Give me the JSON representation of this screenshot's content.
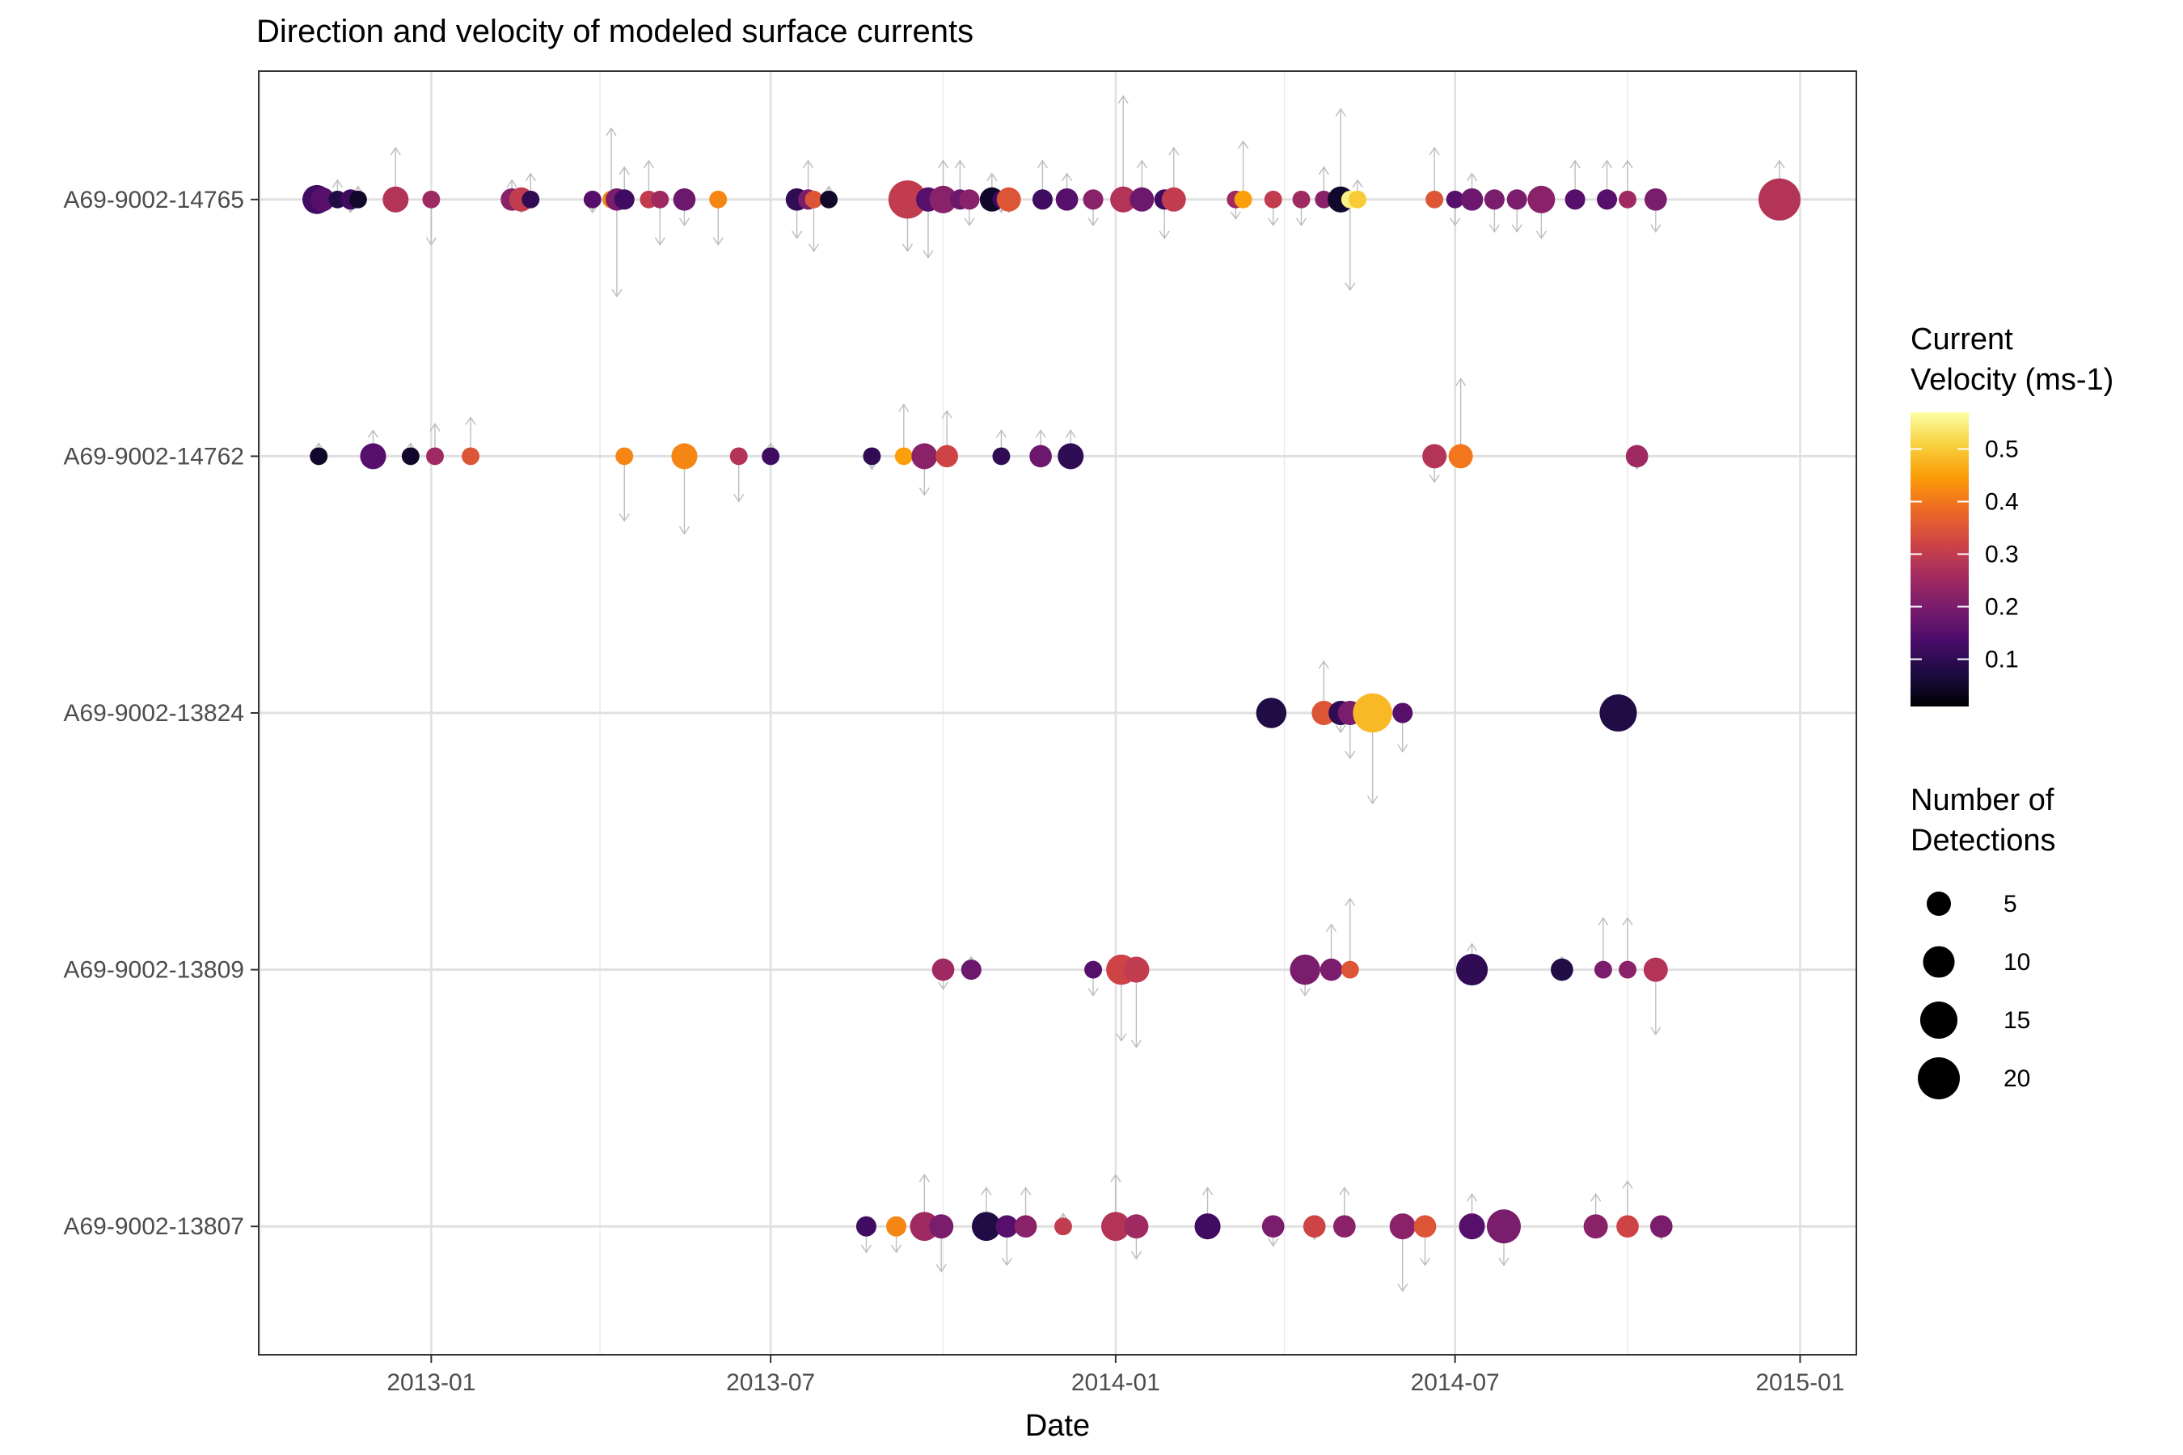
{
  "chart_data": {
    "type": "scatter",
    "title": "Direction and velocity of modeled surface currents",
    "xlabel": "Date",
    "ylabel": "",
    "x_ticks": [
      "2013-01",
      "2013-07",
      "2014-01",
      "2014-07",
      "2015-01"
    ],
    "categories": [
      "A69-9002-14765",
      "A69-9002-14762",
      "A69-9002-13824",
      "A69-9002-13809",
      "A69-9002-13807"
    ],
    "xlim": [
      "2012-10-01",
      "2015-01-31"
    ],
    "legend_color": {
      "title_line1": "Current",
      "title_line2": "Velocity (ms-1)",
      "ticks": [
        "0.5",
        "0.4",
        "0.3",
        "0.2",
        "0.1"
      ],
      "range": [
        0.01,
        0.57
      ]
    },
    "legend_size": {
      "title_line1": "Number of",
      "title_line2": "Detections",
      "values": [
        "5",
        "10",
        "15",
        "20"
      ]
    },
    "series": [
      {
        "tag": "A69-9002-14765",
        "points": [
          {
            "date": "2012-11-01",
            "velocity": 0.12,
            "detections": 8,
            "arrow": -0.1
          },
          {
            "date": "2012-11-04",
            "velocity": 0.15,
            "detections": 5,
            "arrow": 0.1
          },
          {
            "date": "2012-11-12",
            "velocity": 0.08,
            "detections": 2,
            "arrow": 0.15
          },
          {
            "date": "2012-11-19",
            "velocity": 0.12,
            "detections": 3,
            "arrow": -0.1
          },
          {
            "date": "2012-11-23",
            "velocity": 0.05,
            "detections": 2,
            "arrow": 0.1
          },
          {
            "date": "2012-12-13",
            "velocity": 0.28,
            "detections": 6,
            "arrow": 0.4
          },
          {
            "date": "2013-01-01",
            "velocity": 0.25,
            "detections": 2,
            "arrow": -0.35
          },
          {
            "date": "2013-02-13",
            "velocity": 0.22,
            "detections": 4,
            "arrow": 0.15
          },
          {
            "date": "2013-02-18",
            "velocity": 0.3,
            "detections": 5,
            "arrow": -0.1
          },
          {
            "date": "2013-02-23",
            "velocity": 0.1,
            "detections": 2,
            "arrow": 0.2
          },
          {
            "date": "2013-03-28",
            "velocity": 0.15,
            "detections": 2,
            "arrow": -0.1
          },
          {
            "date": "2013-04-07",
            "velocity": 0.42,
            "detections": 2,
            "arrow": 0.55
          },
          {
            "date": "2013-04-10",
            "velocity": 0.2,
            "detections": 4,
            "arrow": -0.75
          },
          {
            "date": "2013-04-14",
            "velocity": 0.12,
            "detections": 3,
            "arrow": 0.25
          },
          {
            "date": "2013-04-27",
            "velocity": 0.3,
            "detections": 2,
            "arrow": 0.3
          },
          {
            "date": "2013-05-03",
            "velocity": 0.25,
            "detections": 2,
            "arrow": -0.35
          },
          {
            "date": "2013-05-16",
            "velocity": 0.18,
            "detections": 4,
            "arrow": -0.2
          },
          {
            "date": "2013-06-03",
            "velocity": 0.42,
            "detections": 2,
            "arrow": -0.35
          },
          {
            "date": "2013-07-15",
            "velocity": 0.1,
            "detections": 4,
            "arrow": -0.3
          },
          {
            "date": "2013-07-21",
            "velocity": 0.2,
            "detections": 3,
            "arrow": 0.3
          },
          {
            "date": "2013-07-24",
            "velocity": 0.35,
            "detections": 2,
            "arrow": -0.4
          },
          {
            "date": "2013-08-01",
            "velocity": 0.05,
            "detections": 2,
            "arrow": 0.1
          },
          {
            "date": "2013-09-12",
            "velocity": 0.3,
            "detections": 16,
            "arrow": -0.4
          },
          {
            "date": "2013-09-23",
            "velocity": 0.15,
            "detections": 5,
            "arrow": -0.45
          },
          {
            "date": "2013-10-01",
            "velocity": 0.22,
            "detections": 7,
            "arrow": 0.3
          },
          {
            "date": "2013-10-10",
            "velocity": 0.18,
            "detections": 3,
            "arrow": 0.3
          },
          {
            "date": "2013-10-15",
            "velocity": 0.22,
            "detections": 3,
            "arrow": -0.2
          },
          {
            "date": "2013-10-27",
            "velocity": 0.05,
            "detections": 5,
            "arrow": 0.2
          },
          {
            "date": "2013-11-01",
            "velocity": 0.12,
            "detections": 2,
            "arrow": -0.1
          },
          {
            "date": "2013-11-05",
            "velocity": 0.35,
            "detections": 5,
            "arrow": -0.1
          },
          {
            "date": "2013-11-23",
            "velocity": 0.12,
            "detections": 3,
            "arrow": 0.3
          },
          {
            "date": "2013-12-06",
            "velocity": 0.15,
            "detections": 4,
            "arrow": 0.2
          },
          {
            "date": "2013-12-20",
            "velocity": 0.22,
            "detections": 3,
            "arrow": -0.2
          },
          {
            "date": "2014-01-05",
            "velocity": 0.28,
            "detections": 6,
            "arrow": 0.8
          },
          {
            "date": "2014-01-15",
            "velocity": 0.18,
            "detections": 5,
            "arrow": 0.3
          },
          {
            "date": "2014-01-27",
            "velocity": 0.12,
            "detections": 3,
            "arrow": -0.3
          },
          {
            "date": "2014-02-01",
            "velocity": 0.3,
            "detections": 5,
            "arrow": 0.4
          },
          {
            "date": "2014-03-06",
            "velocity": 0.25,
            "detections": 2,
            "arrow": -0.15
          },
          {
            "date": "2014-03-10",
            "velocity": 0.45,
            "detections": 2,
            "arrow": 0.45
          },
          {
            "date": "2014-03-26",
            "velocity": 0.3,
            "detections": 2,
            "arrow": -0.2
          },
          {
            "date": "2014-04-10",
            "velocity": 0.25,
            "detections": 2,
            "arrow": -0.2
          },
          {
            "date": "2014-04-22",
            "velocity": 0.22,
            "detections": 2,
            "arrow": 0.25
          },
          {
            "date": "2014-05-01",
            "velocity": 0.05,
            "detections": 6,
            "arrow": 0.7
          },
          {
            "date": "2014-05-06",
            "velocity": 0.55,
            "detections": 2,
            "arrow": -0.7
          },
          {
            "date": "2014-05-10",
            "velocity": 0.5,
            "detections": 2,
            "arrow": 0.15
          },
          {
            "date": "2014-06-20",
            "velocity": 0.35,
            "detections": 2,
            "arrow": 0.4
          },
          {
            "date": "2014-07-01",
            "velocity": 0.15,
            "detections": 2,
            "arrow": -0.2
          },
          {
            "date": "2014-07-10",
            "velocity": 0.18,
            "detections": 4,
            "arrow": 0.2
          },
          {
            "date": "2014-07-22",
            "velocity": 0.2,
            "detections": 3,
            "arrow": -0.25
          },
          {
            "date": "2014-08-03",
            "velocity": 0.2,
            "detections": 3,
            "arrow": -0.25
          },
          {
            "date": "2014-08-16",
            "velocity": 0.22,
            "detections": 7,
            "arrow": -0.3
          },
          {
            "date": "2014-09-03",
            "velocity": 0.15,
            "detections": 3,
            "arrow": 0.3
          },
          {
            "date": "2014-09-20",
            "velocity": 0.15,
            "detections": 3,
            "arrow": 0.3
          },
          {
            "date": "2014-10-01",
            "velocity": 0.25,
            "detections": 2,
            "arrow": 0.3
          },
          {
            "date": "2014-10-16",
            "velocity": 0.2,
            "detections": 4,
            "arrow": -0.25
          },
          {
            "date": "2014-12-21",
            "velocity": 0.28,
            "detections": 20,
            "arrow": 0.3
          }
        ]
      },
      {
        "tag": "A69-9002-14762",
        "points": [
          {
            "date": "2012-11-02",
            "velocity": 0.05,
            "detections": 2,
            "arrow": 0.1
          },
          {
            "date": "2012-12-01",
            "velocity": 0.15,
            "detections": 6,
            "arrow": 0.2
          },
          {
            "date": "2012-12-21",
            "velocity": 0.05,
            "detections": 2,
            "arrow": 0.1
          },
          {
            "date": "2013-01-03",
            "velocity": 0.25,
            "detections": 2,
            "arrow": 0.25
          },
          {
            "date": "2013-01-22",
            "velocity": 0.35,
            "detections": 2,
            "arrow": 0.3
          },
          {
            "date": "2013-04-14",
            "velocity": 0.42,
            "detections": 2,
            "arrow": -0.5
          },
          {
            "date": "2013-05-16",
            "velocity": 0.42,
            "detections": 6,
            "arrow": -0.6
          },
          {
            "date": "2013-06-14",
            "velocity": 0.28,
            "detections": 2,
            "arrow": -0.35
          },
          {
            "date": "2013-07-01",
            "velocity": 0.12,
            "detections": 2,
            "arrow": 0.1
          },
          {
            "date": "2013-08-24",
            "velocity": 0.1,
            "detections": 2,
            "arrow": -0.1
          },
          {
            "date": "2013-09-10",
            "velocity": 0.45,
            "detections": 2,
            "arrow": 0.4
          },
          {
            "date": "2013-09-21",
            "velocity": 0.22,
            "detections": 6,
            "arrow": -0.3
          },
          {
            "date": "2013-10-03",
            "velocity": 0.32,
            "detections": 4,
            "arrow": 0.35
          },
          {
            "date": "2013-11-01",
            "velocity": 0.1,
            "detections": 2,
            "arrow": 0.2
          },
          {
            "date": "2013-11-22",
            "velocity": 0.18,
            "detections": 4,
            "arrow": 0.2
          },
          {
            "date": "2013-12-08",
            "velocity": 0.1,
            "detections": 6,
            "arrow": 0.2
          },
          {
            "date": "2014-06-20",
            "velocity": 0.28,
            "detections": 5,
            "arrow": -0.2
          },
          {
            "date": "2014-07-04",
            "velocity": 0.4,
            "detections": 5,
            "arrow": 0.6
          },
          {
            "date": "2014-10-06",
            "velocity": 0.25,
            "detections": 4,
            "arrow": -0.1
          }
        ]
      },
      {
        "tag": "A69-9002-13824",
        "points": [
          {
            "date": "2014-03-25",
            "velocity": 0.08,
            "detections": 9,
            "arrow": 0.1
          },
          {
            "date": "2014-04-22",
            "velocity": 0.35,
            "detections": 5,
            "arrow": 0.4
          },
          {
            "date": "2014-05-01",
            "velocity": 0.1,
            "detections": 5,
            "arrow": -0.15
          },
          {
            "date": "2014-05-06",
            "velocity": 0.2,
            "detections": 5,
            "arrow": -0.35
          },
          {
            "date": "2014-05-18",
            "velocity": 0.48,
            "detections": 17,
            "arrow": -0.7
          },
          {
            "date": "2014-06-03",
            "velocity": 0.15,
            "detections": 3,
            "arrow": -0.3
          },
          {
            "date": "2014-09-26",
            "velocity": 0.08,
            "detections": 15,
            "arrow": -0.1
          }
        ]
      },
      {
        "tag": "A69-9002-13809",
        "points": [
          {
            "date": "2013-10-01",
            "velocity": 0.25,
            "detections": 4,
            "arrow": -0.15
          },
          {
            "date": "2013-10-16",
            "velocity": 0.18,
            "detections": 3,
            "arrow": 0.1
          },
          {
            "date": "2013-12-20",
            "velocity": 0.15,
            "detections": 2,
            "arrow": -0.2
          },
          {
            "date": "2014-01-04",
            "velocity": 0.32,
            "detections": 9,
            "arrow": -0.55
          },
          {
            "date": "2014-01-12",
            "velocity": 0.3,
            "detections": 6,
            "arrow": -0.6
          },
          {
            "date": "2014-04-12",
            "velocity": 0.2,
            "detections": 9,
            "arrow": -0.2
          },
          {
            "date": "2014-04-26",
            "velocity": 0.2,
            "detections": 4,
            "arrow": 0.35
          },
          {
            "date": "2014-05-06",
            "velocity": 0.35,
            "detections": 2,
            "arrow": 0.55
          },
          {
            "date": "2014-07-10",
            "velocity": 0.1,
            "detections": 10,
            "arrow": 0.2
          },
          {
            "date": "2014-08-27",
            "velocity": 0.08,
            "detections": 4,
            "arrow": 0.1
          },
          {
            "date": "2014-09-18",
            "velocity": 0.2,
            "detections": 2,
            "arrow": 0.4
          },
          {
            "date": "2014-10-01",
            "velocity": 0.22,
            "detections": 2,
            "arrow": 0.4
          },
          {
            "date": "2014-10-16",
            "velocity": 0.28,
            "detections": 5,
            "arrow": -0.5
          }
        ]
      },
      {
        "tag": "A69-9002-13807",
        "points": [
          {
            "date": "2013-08-21",
            "velocity": 0.12,
            "detections": 3,
            "arrow": -0.2
          },
          {
            "date": "2013-09-06",
            "velocity": 0.42,
            "detections": 3,
            "arrow": -0.2
          },
          {
            "date": "2013-09-21",
            "velocity": 0.25,
            "detections": 8,
            "arrow": 0.4
          },
          {
            "date": "2013-09-30",
            "velocity": 0.2,
            "detections": 5,
            "arrow": -0.35
          },
          {
            "date": "2013-10-24",
            "velocity": 0.08,
            "detections": 8,
            "arrow": 0.3
          },
          {
            "date": "2013-11-04",
            "velocity": 0.15,
            "detections": 4,
            "arrow": -0.3
          },
          {
            "date": "2013-11-14",
            "velocity": 0.22,
            "detections": 4,
            "arrow": 0.3
          },
          {
            "date": "2013-12-04",
            "velocity": 0.3,
            "detections": 2,
            "arrow": 0.1
          },
          {
            "date": "2014-01-01",
            "velocity": 0.28,
            "detections": 8,
            "arrow": 0.4
          },
          {
            "date": "2014-01-12",
            "velocity": 0.25,
            "detections": 5,
            "arrow": -0.25
          },
          {
            "date": "2014-02-19",
            "velocity": 0.12,
            "detections": 6,
            "arrow": 0.3
          },
          {
            "date": "2014-03-26",
            "velocity": 0.2,
            "detections": 4,
            "arrow": -0.15
          },
          {
            "date": "2014-04-17",
            "velocity": 0.32,
            "detections": 4,
            "arrow": -0.1
          },
          {
            "date": "2014-05-03",
            "velocity": 0.22,
            "detections": 4,
            "arrow": 0.3
          },
          {
            "date": "2014-06-03",
            "velocity": 0.22,
            "detections": 6,
            "arrow": -0.5
          },
          {
            "date": "2014-06-15",
            "velocity": 0.35,
            "detections": 4,
            "arrow": -0.3
          },
          {
            "date": "2014-07-10",
            "velocity": 0.15,
            "detections": 6,
            "arrow": 0.25
          },
          {
            "date": "2014-07-27",
            "velocity": 0.2,
            "detections": 12,
            "arrow": -0.3
          },
          {
            "date": "2014-09-14",
            "velocity": 0.22,
            "detections": 5,
            "arrow": 0.25
          },
          {
            "date": "2014-10-01",
            "velocity": 0.32,
            "detections": 4,
            "arrow": 0.35
          },
          {
            "date": "2014-10-19",
            "velocity": 0.2,
            "detections": 4,
            "arrow": -0.1
          }
        ]
      }
    ]
  }
}
